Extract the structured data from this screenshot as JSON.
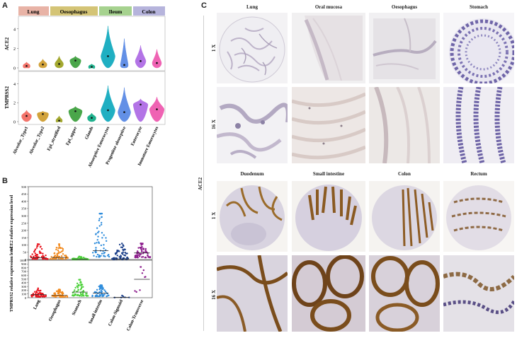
{
  "panels": {
    "a": "A",
    "b": "B",
    "c": "C"
  },
  "panel_a": {
    "groups": [
      "Lung",
      "Oesophagus",
      "Ileum",
      "Colon"
    ],
    "group_colors": [
      "#e8b3a6",
      "#d4c476",
      "#a6d28f",
      "#b6b4dc"
    ],
    "top_ylabel": "ACE2",
    "bottom_ylabel": "TMPRSS2",
    "top_ticks": [
      "0",
      "2",
      "4"
    ],
    "bottom_ticks": [
      "0",
      "2",
      "4"
    ],
    "categories": [
      "Alveolar_Type1",
      "Alveolar_Type2",
      "Epi_stratified",
      "Epi_upper",
      "Glands",
      "Absorptive Enterocytes",
      "Progenitor absorptive",
      "Enterocyte",
      "Immature Enterocytes"
    ],
    "violin_colors": [
      "#f3746b",
      "#d2a33c",
      "#a3a82f",
      "#4aa64a",
      "#20b18e",
      "#20afc2",
      "#6390e6",
      "#b374e6",
      "#ef63b3"
    ]
  },
  "chart_data": [
    {
      "type": "violin",
      "title": "",
      "ylabel": "ACE2",
      "ylim": [
        0,
        5
      ],
      "categories": [
        "Alveolar_Type1",
        "Alveolar_Type2",
        "Epi_stratified",
        "Epi_upper",
        "Glands",
        "Absorptive Enterocytes",
        "Progenitor absorptive",
        "Enterocyte",
        "Immature Enterocytes"
      ],
      "medians": [
        0.2,
        0.35,
        0.4,
        0.75,
        0.1,
        1.2,
        0.3,
        0.7,
        0.5
      ],
      "max": [
        0.6,
        0.9,
        1.2,
        1.2,
        0.4,
        4.3,
        3.0,
        2.3,
        1.9
      ]
    },
    {
      "type": "violin",
      "title": "",
      "ylabel": "TMPRSS2",
      "ylim": [
        0,
        5
      ],
      "categories": [
        "Alveolar_Type1",
        "Alveolar_Type2",
        "Epi_stratified",
        "Epi_upper",
        "Glands",
        "Absorptive Enterocytes",
        "Progenitor absorptive",
        "Enterocyte",
        "Immature Enterocytes"
      ],
      "medians": [
        0.6,
        0.8,
        0.1,
        1.1,
        0.4,
        1.2,
        1.0,
        1.8,
        1.3
      ],
      "max": [
        1.2,
        1.1,
        0.6,
        1.6,
        0.9,
        3.8,
        3.6,
        2.4,
        2.6
      ]
    },
    {
      "type": "scatter",
      "title": "",
      "ylabel": "ACE2 relative expression level",
      "ylim": [
        0,
        500
      ],
      "yticks": [
        "0",
        "50",
        "100",
        "150",
        "200",
        "250",
        "300",
        "350",
        "400",
        "450",
        "500"
      ],
      "categories": [
        "Lung",
        "Oesophagus",
        "Stomach",
        "Small intestin",
        "Colon-Sigmoid",
        "Colon-Transverse"
      ],
      "colors": [
        "#e8121c",
        "#f28a1e",
        "#4cd13a",
        "#2f8ddc",
        "#1b3f8a",
        "#8b1a8b"
      ],
      "medians": [
        12,
        14,
        3,
        60,
        4,
        45
      ],
      "max": [
        105,
        105,
        20,
        315,
        110,
        110
      ]
    },
    {
      "type": "scatter",
      "title": "",
      "ylabel": "TMPRSS2 relative expression level",
      "ylim": [
        0,
        1000
      ],
      "yticks": [
        "0",
        "100",
        "200",
        "300",
        "400",
        "500",
        "600",
        "700",
        "800",
        "900",
        "1000"
      ],
      "categories": [
        "Lung",
        "Oesophagus",
        "Stomach",
        "Small intestin",
        "Colon-Sigmoid",
        "Colon-Transverse"
      ],
      "colors": [
        "#e8121c",
        "#f28a1e",
        "#4cd13a",
        "#2f8ddc",
        "#1b3f8a",
        "#8b1a8b"
      ],
      "medians": [
        80,
        70,
        150,
        120,
        10,
        490
      ],
      "max": [
        250,
        220,
        480,
        330,
        60,
        820
      ]
    }
  ],
  "panel_c": {
    "side_label": "ACE2",
    "row_labels": [
      "1 X",
      "16 X",
      "1 X",
      "16 X"
    ],
    "top_tissues": [
      "Lung",
      "Oral mucosa",
      "Oesophagus",
      "Stomach"
    ],
    "bottom_tissues": [
      "Duodenum",
      "Small intestine",
      "Colon",
      "Rectum"
    ]
  }
}
